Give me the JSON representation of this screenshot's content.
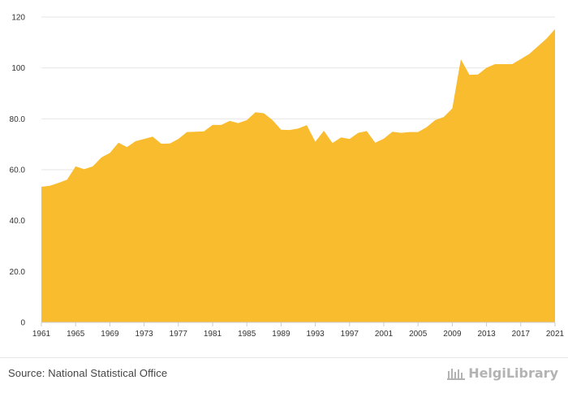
{
  "chart_data": {
    "type": "area",
    "title": "",
    "xlabel": "",
    "ylabel": "",
    "x": [
      1961,
      1962,
      1963,
      1964,
      1965,
      1966,
      1967,
      1968,
      1969,
      1970,
      1971,
      1972,
      1973,
      1974,
      1975,
      1976,
      1977,
      1978,
      1979,
      1980,
      1981,
      1982,
      1983,
      1984,
      1985,
      1986,
      1987,
      1988,
      1989,
      1990,
      1991,
      1992,
      1993,
      1994,
      1995,
      1996,
      1997,
      1998,
      1999,
      2000,
      2001,
      2002,
      2003,
      2004,
      2005,
      2006,
      2007,
      2008,
      2009,
      2010,
      2011,
      2012,
      2013,
      2014,
      2015,
      2016,
      2017,
      2018,
      2019,
      2020,
      2021
    ],
    "series": [
      {
        "values": [
          53.3,
          53.7,
          54.8,
          56.1,
          61.3,
          60.2,
          61.3,
          64.8,
          66.6,
          70.6,
          68.9,
          71.2,
          72.1,
          73.0,
          70.2,
          70.3,
          72.1,
          74.8,
          74.9,
          75.1,
          77.6,
          77.6,
          79.2,
          78.3,
          79.5,
          82.6,
          82.2,
          79.5,
          75.7,
          75.6,
          76.2,
          77.5,
          71.0,
          75.3,
          70.5,
          72.7,
          72.1,
          74.5,
          75.2,
          70.6,
          72.2,
          74.9,
          74.5,
          74.8,
          74.8,
          76.7,
          79.5,
          80.7,
          84.1,
          103.4,
          97.3,
          97.4,
          100.1,
          101.5,
          101.5,
          101.5,
          103.5,
          105.5,
          108.5,
          111.5,
          115.3
        ]
      }
    ],
    "y_ticks": [
      "0",
      "20.0",
      "40.0",
      "60.0",
      "80.0",
      "100",
      "120"
    ],
    "x_ticks": [
      "1961",
      "1965",
      "1969",
      "1973",
      "1977",
      "1981",
      "1985",
      "1989",
      "1993",
      "1997",
      "2001",
      "2005",
      "2009",
      "2013",
      "2017",
      "2021"
    ],
    "ylim": [
      0,
      120
    ],
    "grid": true,
    "fill_color": "#f9bc2f"
  },
  "footer": {
    "source": "Source: National Statistical Office",
    "logo_text": "HelgiLibrary",
    "logo_icon": "library-logo-icon"
  }
}
